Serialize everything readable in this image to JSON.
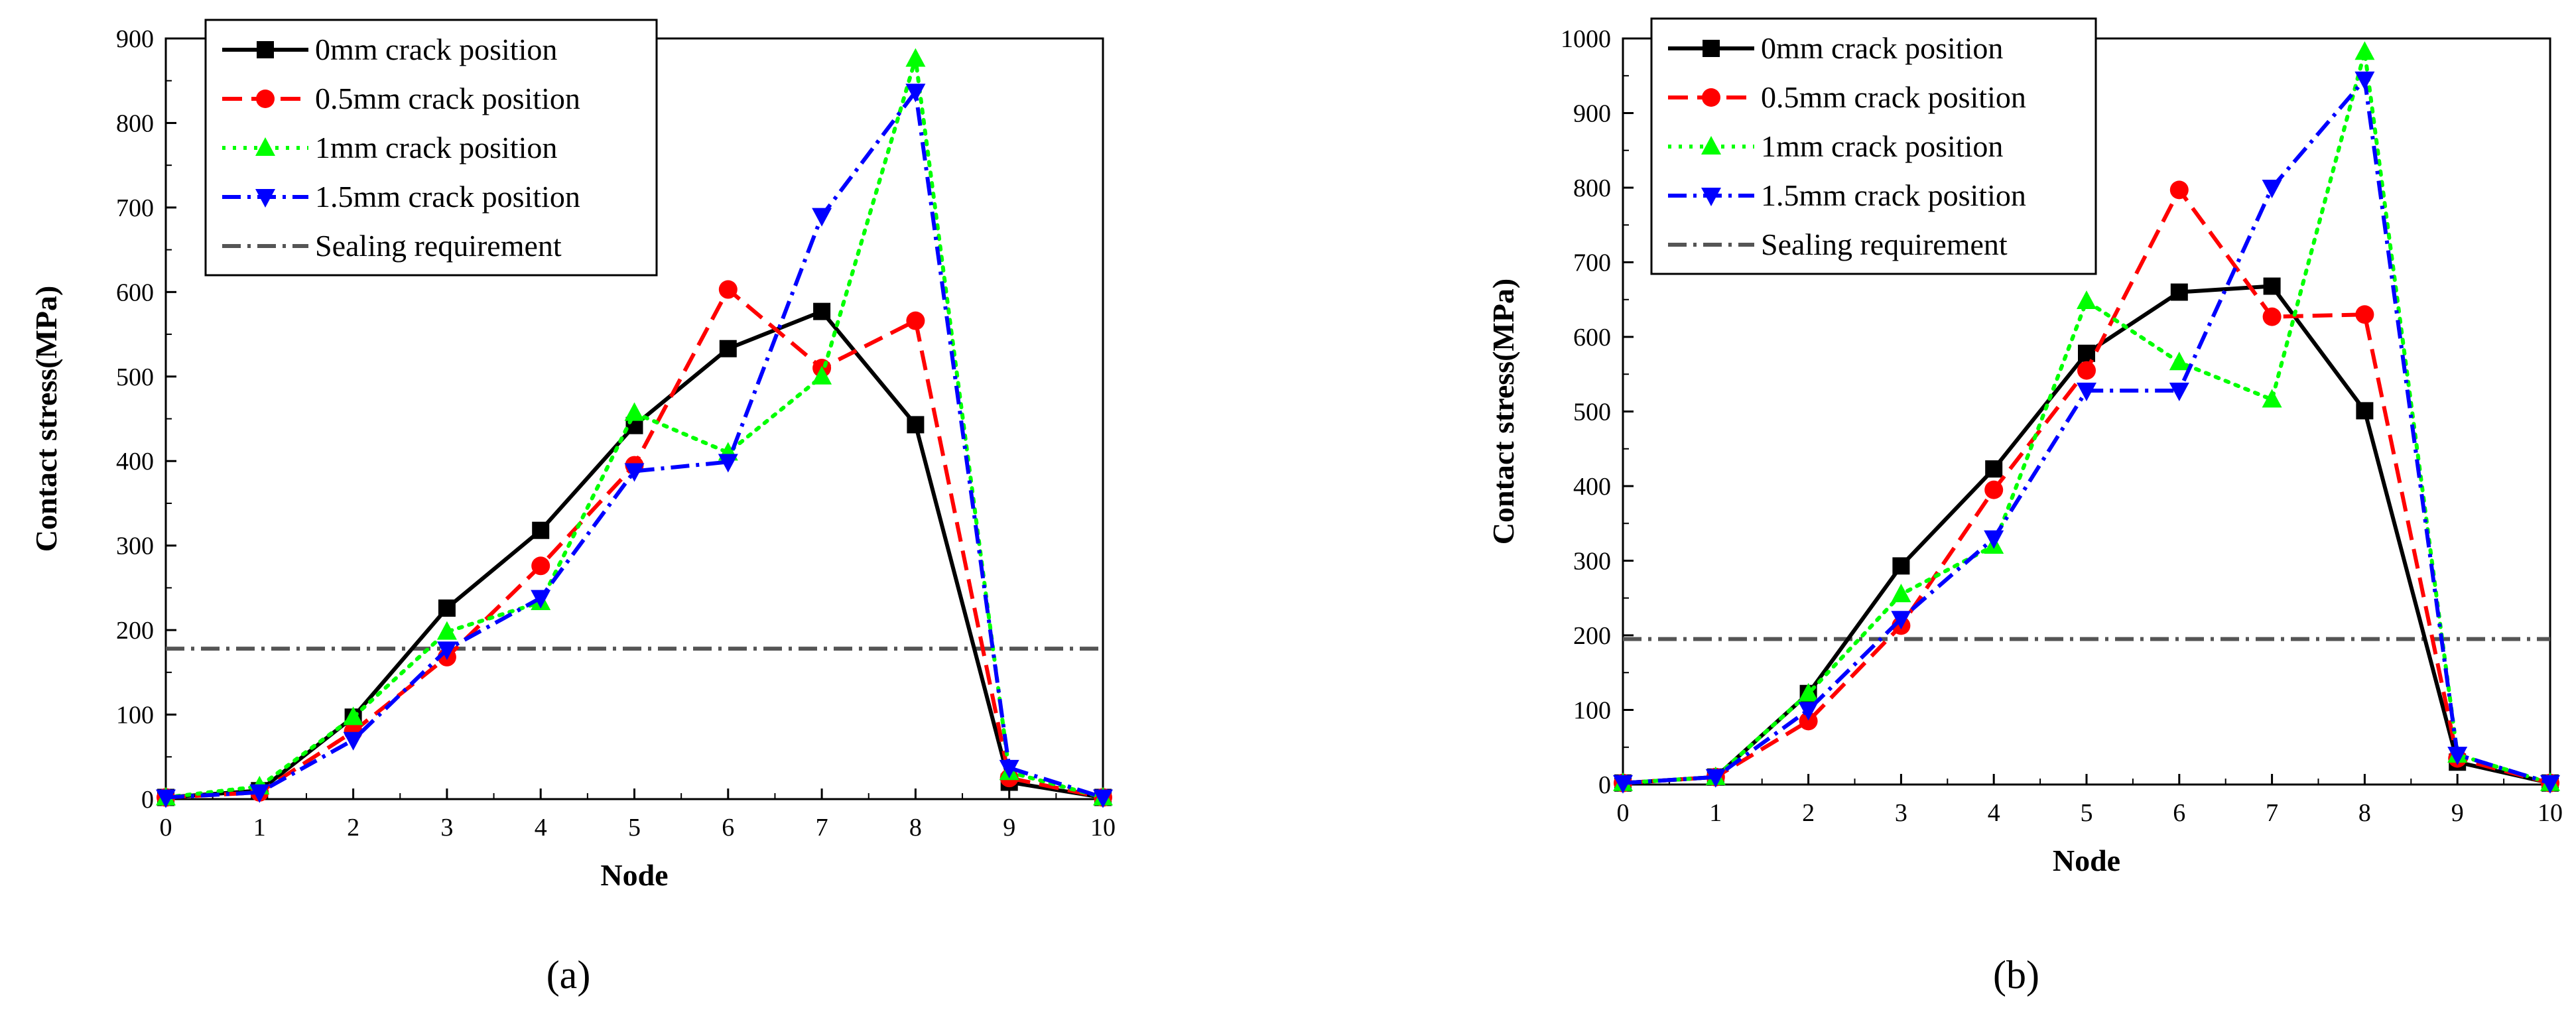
{
  "chart_data": [
    {
      "type": "line",
      "panel": "a",
      "caption": "(a)",
      "xlabel": "Node",
      "ylabel": "Contact stress(MPa)",
      "xlim": [
        0,
        10
      ],
      "ylim": [
        0,
        900
      ],
      "xticks": [
        "0",
        "1",
        "2",
        "3",
        "4",
        "5",
        "6",
        "7",
        "8",
        "9",
        "10"
      ],
      "yticks": [
        "0",
        "100",
        "200",
        "300",
        "400",
        "500",
        "600",
        "700",
        "800",
        "900"
      ],
      "legend_position": "top-left",
      "x": [
        0,
        1,
        2,
        3,
        4,
        5,
        6,
        7,
        8,
        9,
        10
      ],
      "series": [
        {
          "name": "0mm crack position",
          "color": "#000000",
          "marker": "square",
          "dash": "solid",
          "values": [
            2,
            10,
            97,
            226,
            318,
            442,
            533,
            577,
            443,
            20,
            2
          ]
        },
        {
          "name": "0.5mm crack position",
          "color": "#ff0000",
          "marker": "circle",
          "dash": "dash",
          "values": [
            2,
            8,
            80,
            168,
            276,
            395,
            603,
            510,
            566,
            25,
            2
          ]
        },
        {
          "name": "1mm crack position",
          "color": "#00ff00",
          "marker": "triangle-up",
          "dash": "dot",
          "values": [
            2,
            15,
            97,
            198,
            233,
            457,
            410,
            500,
            876,
            32,
            2
          ]
        },
        {
          "name": "1.5mm crack position",
          "color": "#0000ff",
          "marker": "triangle-down",
          "dash": "dashdot",
          "values": [
            2,
            8,
            70,
            177,
            238,
            388,
            399,
            690,
            837,
            37,
            2
          ]
        }
      ],
      "reference_line": {
        "name": "Sealing requirement",
        "value": 178,
        "color": "#555555",
        "dash": "dashdot"
      }
    },
    {
      "type": "line",
      "panel": "b",
      "caption": "(b)",
      "xlabel": "Node",
      "ylabel": "Contact stress(MPa)",
      "xlim": [
        0,
        10
      ],
      "ylim": [
        0,
        1000
      ],
      "xticks": [
        "0",
        "1",
        "2",
        "3",
        "4",
        "5",
        "6",
        "7",
        "8",
        "9",
        "10"
      ],
      "yticks": [
        "0",
        "100",
        "200",
        "300",
        "400",
        "500",
        "600",
        "700",
        "800",
        "900",
        "1000"
      ],
      "legend_position": "top-left",
      "x": [
        0,
        1,
        2,
        3,
        4,
        5,
        6,
        7,
        8,
        9,
        10
      ],
      "series": [
        {
          "name": "0mm crack position",
          "color": "#000000",
          "marker": "square",
          "dash": "solid",
          "values": [
            2,
            10,
            122,
            293,
            423,
            578,
            660,
            668,
            501,
            30,
            2
          ]
        },
        {
          "name": "0.5mm crack position",
          "color": "#ff0000",
          "marker": "circle",
          "dash": "dash",
          "values": [
            2,
            10,
            85,
            213,
            395,
            555,
            797,
            627,
            630,
            35,
            2
          ]
        },
        {
          "name": "1mm crack position",
          "color": "#00ff00",
          "marker": "triangle-up",
          "dash": "dot",
          "values": [
            2,
            10,
            122,
            255,
            320,
            648,
            566,
            516,
            982,
            40,
            2
          ]
        },
        {
          "name": "1.5mm crack position",
          "color": "#0000ff",
          "marker": "triangle-down",
          "dash": "dashdot",
          "values": [
            2,
            10,
            100,
            222,
            330,
            528,
            528,
            800,
            945,
            40,
            2
          ]
        }
      ],
      "reference_line": {
        "name": "Sealing requirement",
        "value": 195,
        "color": "#555555",
        "dash": "dashdot"
      }
    }
  ]
}
